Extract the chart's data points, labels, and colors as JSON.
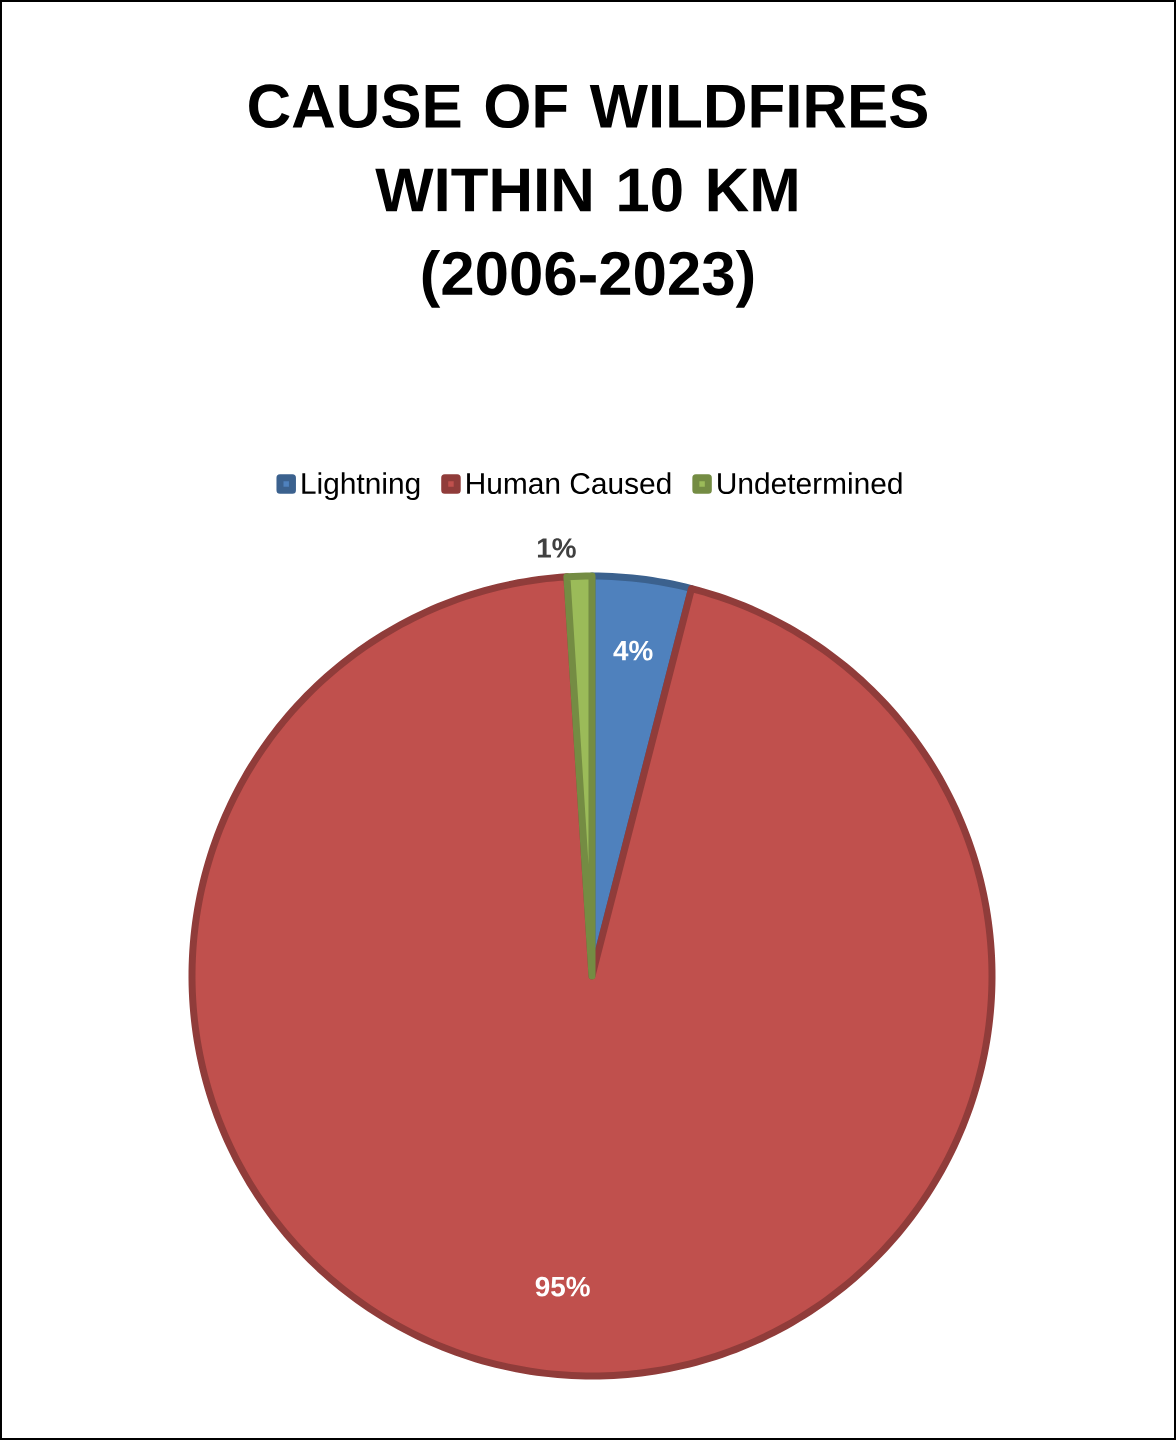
{
  "chart_data": {
    "type": "pie",
    "title": "CAUSE OF WILDFIRES WITHIN 10 KM (2006-2023)",
    "categories": [
      "Lightning",
      "Human Caused",
      "Undetermined"
    ],
    "values": [
      4,
      95,
      1
    ],
    "colors": [
      "#4f81bd",
      "#c0504d",
      "#9bbb59"
    ],
    "value_labels": [
      "4%",
      "95%",
      "1%"
    ],
    "legend": "top"
  }
}
